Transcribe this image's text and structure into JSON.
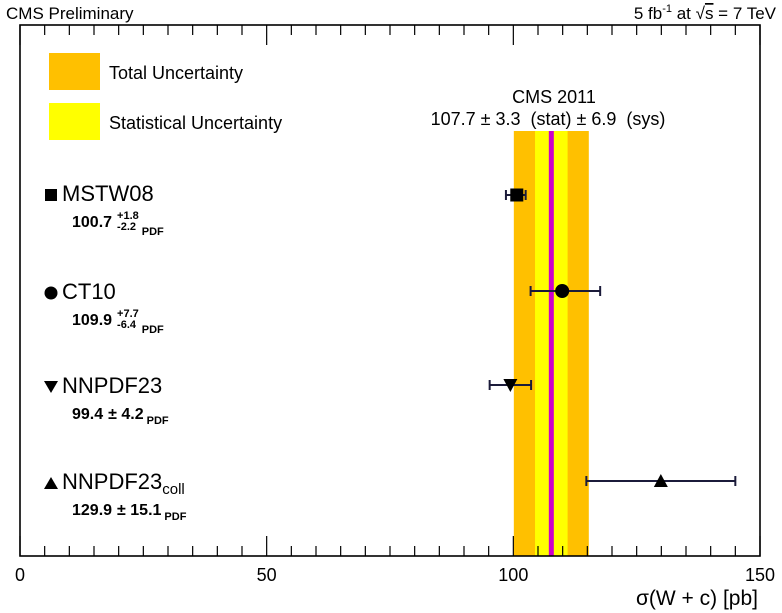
{
  "header": {
    "left": "CMS Preliminary",
    "right_lumi": "5 fb",
    "right_lumi_exp": "-1",
    "right_at": " at ",
    "right_sqrt": "s",
    "right_energy": " = 7 TeV"
  },
  "legend": [
    {
      "label": "Total Uncertainty",
      "color": "#FFC000"
    },
    {
      "label": "Statistical Uncertainty",
      "color": "#FFFF00"
    }
  ],
  "measurement": {
    "title": "CMS 2011",
    "summary": "107.7 ± 3.3  (stat) ± 6.9  (sys)"
  },
  "chart_data": {
    "type": "scatter",
    "xlabel": "σ(W + c) [pb]",
    "xlim": [
      0,
      150
    ],
    "xticks": [
      0,
      50,
      100,
      150
    ],
    "measurement": {
      "value": 107.7,
      "stat": 3.3,
      "sys": 6.9,
      "total": 7.6,
      "line_color": "#CC00CC",
      "total_color": "#FFC000",
      "stat_color": "#FFFF00"
    },
    "predictions": [
      {
        "name": "MSTW08",
        "sub": "",
        "marker": "square",
        "value": 100.7,
        "err_up": 1.8,
        "err_down": 2.2,
        "val_text": "100.7",
        "up_text": "+1.8",
        "down_text": "-2.2",
        "sym_text": "",
        "pdf": "PDF"
      },
      {
        "name": "CT10",
        "sub": "",
        "marker": "circle",
        "value": 109.9,
        "err_up": 7.7,
        "err_down": 6.4,
        "val_text": "109.9",
        "up_text": "+7.7",
        "down_text": "-6.4",
        "sym_text": "",
        "pdf": "PDF"
      },
      {
        "name": "NNPDF23",
        "sub": "",
        "marker": "triangle-down",
        "value": 99.4,
        "err_up": 4.2,
        "err_down": 4.2,
        "val_text": "99.4",
        "up_text": "",
        "down_text": "",
        "sym_text": "± 4.2",
        "pdf": "PDF"
      },
      {
        "name": "NNPDF23",
        "sub": "coll",
        "marker": "triangle-up",
        "value": 129.9,
        "err_up": 15.1,
        "err_down": 15.1,
        "val_text": "129.9",
        "up_text": "",
        "down_text": "",
        "sym_text": "± 15.1",
        "pdf": "PDF"
      }
    ]
  }
}
